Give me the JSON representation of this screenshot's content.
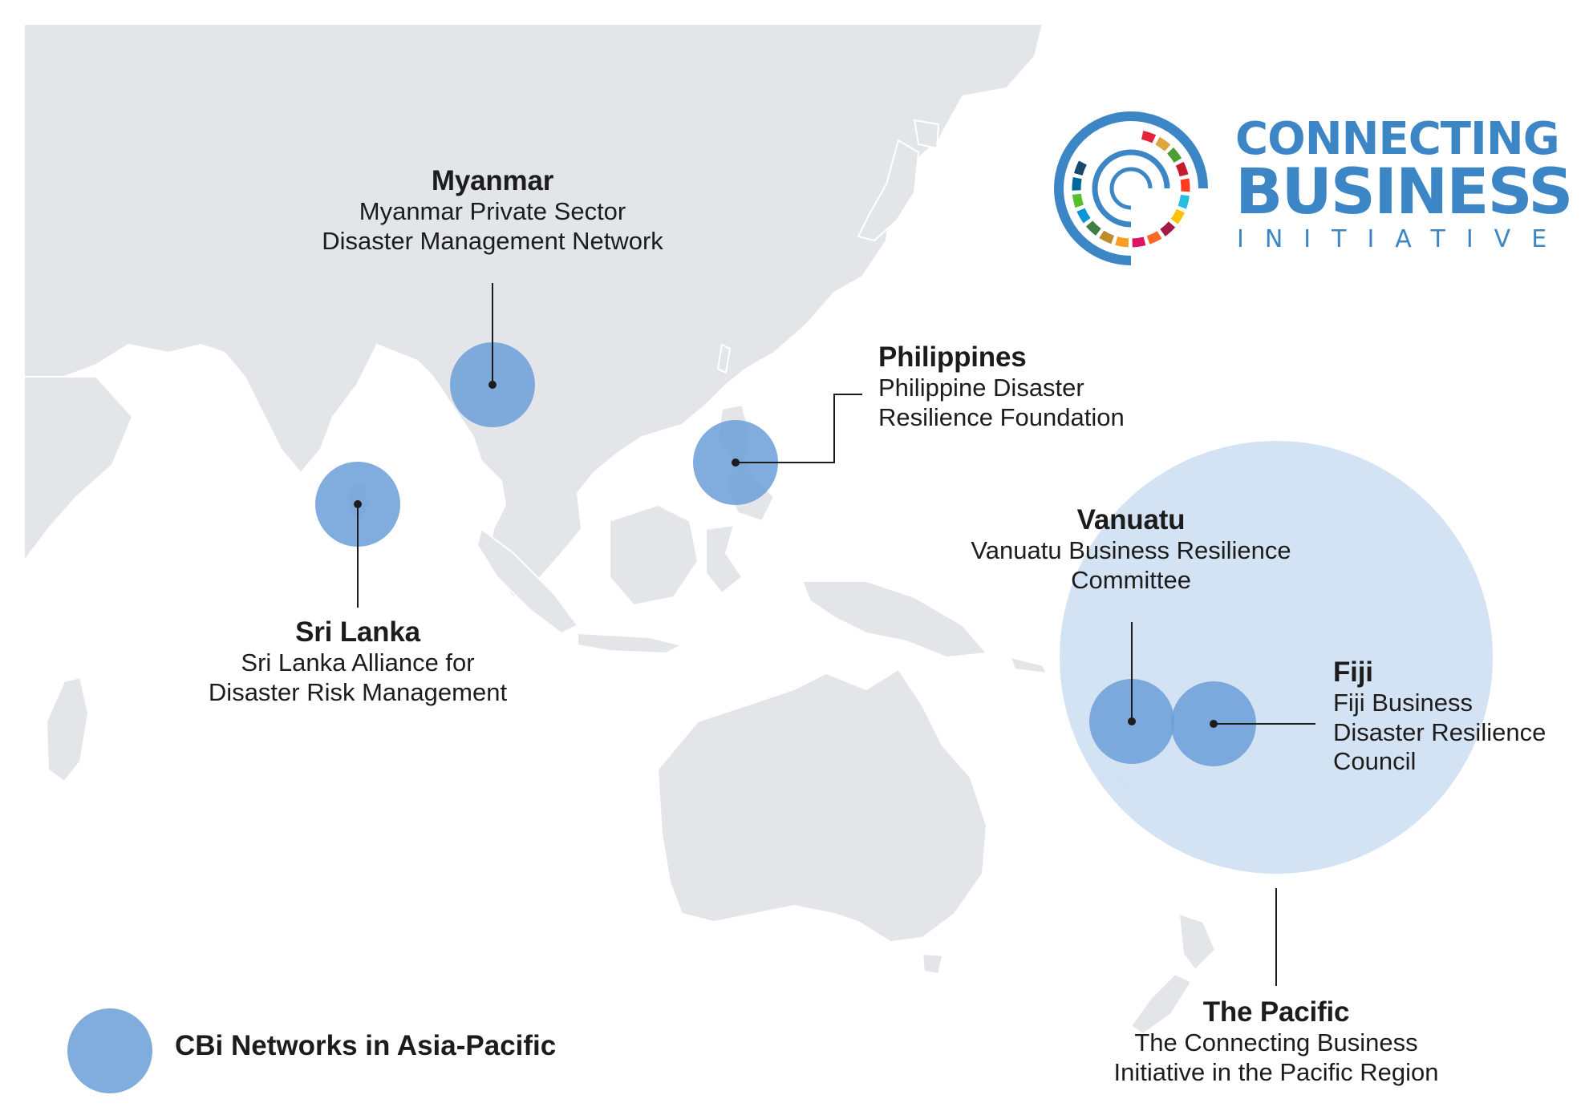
{
  "logo": {
    "line1": "CONNECTING",
    "line2": "BUSINESS",
    "line3": "INITIATIVE",
    "color": "#3d86c6",
    "ring_colors": [
      "#e5243b",
      "#dda63a",
      "#4c9f38",
      "#c5192d",
      "#ff3a21",
      "#26bde2",
      "#fcc30b",
      "#a21942",
      "#fd6925",
      "#dd1367",
      "#fd9d24",
      "#bf8b2e",
      "#3f7e44",
      "#0a97d9",
      "#56c02b",
      "#00689d",
      "#19486a"
    ]
  },
  "networks": [
    {
      "id": "myanmar",
      "title": "Myanmar",
      "lines": [
        "Myanmar Private Sector",
        "Disaster Management Network"
      ]
    },
    {
      "id": "philippines",
      "title": "Philippines",
      "lines": [
        "Philippine Disaster",
        "Resilience Foundation"
      ]
    },
    {
      "id": "sri-lanka",
      "title": "Sri Lanka",
      "lines": [
        "Sri Lanka Alliance for",
        "Disaster Risk Management"
      ]
    },
    {
      "id": "vanuatu",
      "title": "Vanuatu",
      "lines": [
        "Vanuatu Business Resilience",
        "Committee"
      ]
    },
    {
      "id": "fiji",
      "title": "Fiji",
      "lines": [
        "Fiji Business",
        "Disaster Resilience",
        "Council"
      ]
    },
    {
      "id": "pacific",
      "title": "The Pacific",
      "lines": [
        "The Connecting Business",
        "Initiative in the Pacific Region"
      ]
    }
  ],
  "legend": {
    "label": "CBi Networks in Asia-Pacific"
  },
  "colors": {
    "land": "#e3e5e8",
    "land_border": "#ffffff",
    "network_marker": "#6b9fd8",
    "pacific_region": "#cfe0f2",
    "leader": "#1c1c1c"
  }
}
